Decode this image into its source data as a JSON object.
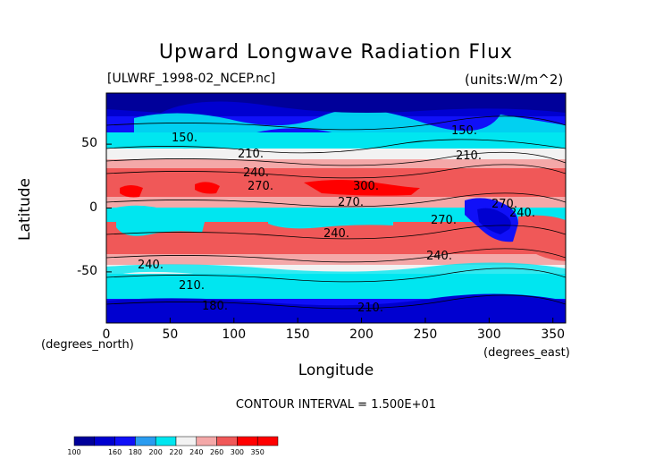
{
  "chart_data": {
    "type": "heatmap",
    "title": "Upward Longwave Radiation Flux",
    "subtitle_left": "[ULWRF_1998-02_NCEP.nc]",
    "subtitle_right": "(units:W/m^2)",
    "xlabel": "Longitude",
    "ylabel": "Latitude",
    "x_units": "(degrees_east)",
    "y_units": "(degrees_north)",
    "xlim": [
      0,
      360
    ],
    "ylim": [
      -90,
      90
    ],
    "x_ticks": [
      "0",
      "50",
      "100",
      "150",
      "200",
      "250",
      "300",
      "350"
    ],
    "y_ticks": [
      "50",
      "0",
      "-50"
    ],
    "contour_interval": "CONTOUR INTERVAL = 1.500E+01",
    "contour_labels": [
      "150.",
      "210.",
      "240.",
      "270.",
      "300.",
      "270.",
      "270.",
      "270.",
      "240.",
      "240.",
      "240.",
      "210.",
      "210.",
      "180.",
      "150.",
      "210.",
      "240."
    ],
    "colorbar": {
      "levels": [
        "100",
        "160",
        "180",
        "200",
        "220",
        "240",
        "260",
        "300",
        "350"
      ],
      "colors": [
        "#00009a",
        "#0000d0",
        "#1010f8",
        "#2a9cf0",
        "#00e6f0",
        "#f2f2f2",
        "#f4a8a8",
        "#f05858",
        "#ff0000",
        "#ff0000"
      ]
    },
    "grid": false
  }
}
